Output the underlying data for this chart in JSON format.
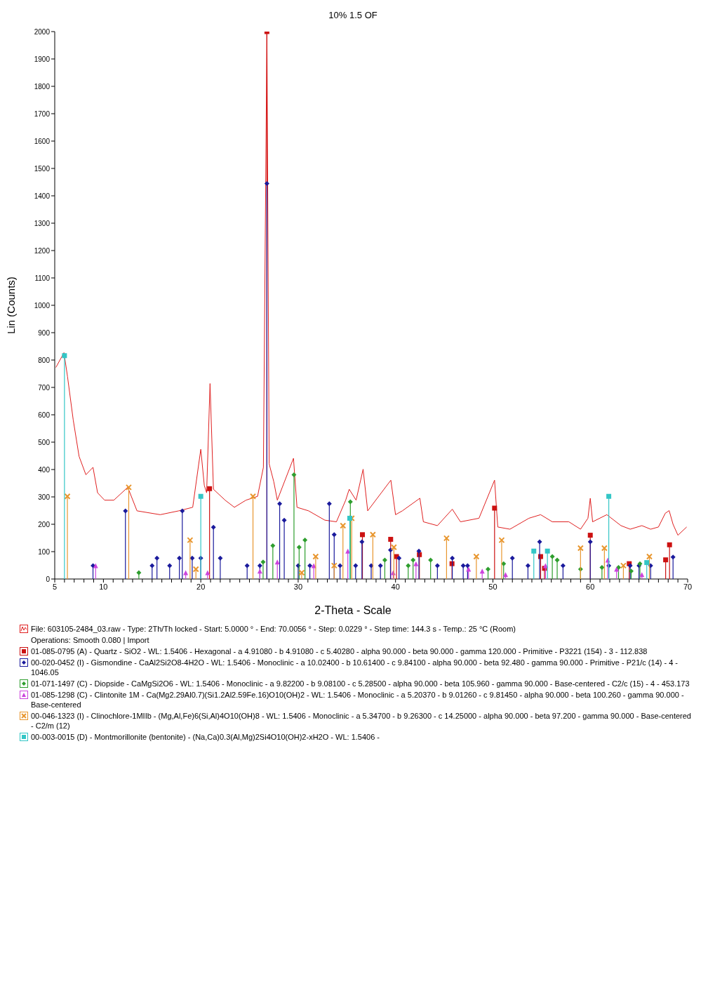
{
  "chart_data": {
    "type": "line",
    "title": "10% 1.5 OF",
    "xlabel": "2-Theta - Scale",
    "ylabel": "Lin (Counts)",
    "xlim": [
      5,
      70
    ],
    "xticks": [
      5,
      {
        "value": 6,
        "label": null
      },
      {
        "value": 7,
        "label": null
      },
      {
        "value": 8,
        "label": null
      },
      {
        "value": 9,
        "label": null
      },
      10,
      {
        "value": 11,
        "label": null
      },
      {
        "value": 12,
        "label": null
      },
      {
        "value": 13,
        "label": null
      },
      {
        "value": 14,
        "label": null
      },
      {
        "value": 15,
        "label": null
      },
      {
        "value": 16,
        "label": null
      },
      {
        "value": 17,
        "label": null
      },
      {
        "value": 18,
        "label": null
      },
      {
        "value": 19,
        "label": null
      },
      20,
      {
        "value": 21,
        "label": null
      },
      {
        "value": 22,
        "label": null
      },
      {
        "value": 23,
        "label": null
      },
      {
        "value": 24,
        "label": null
      },
      {
        "value": 25,
        "label": null
      },
      {
        "value": 26,
        "label": null
      },
      {
        "value": 27,
        "label": null
      },
      {
        "value": 28,
        "label": null
      },
      {
        "value": 29,
        "label": null
      },
      30,
      {
        "value": 31,
        "label": null
      },
      {
        "value": 32,
        "label": null
      },
      {
        "value": 33,
        "label": null
      },
      {
        "value": 34,
        "label": null
      },
      {
        "value": 35,
        "label": null
      },
      {
        "value": 36,
        "label": null
      },
      {
        "value": 37,
        "label": null
      },
      {
        "value": 38,
        "label": null
      },
      {
        "value": 39,
        "label": null
      },
      40,
      {
        "value": 41,
        "label": null
      },
      {
        "value": 42,
        "label": null
      },
      {
        "value": 43,
        "label": null
      },
      {
        "value": 44,
        "label": null
      },
      {
        "value": 45,
        "label": null
      },
      {
        "value": 46,
        "label": null
      },
      {
        "value": 47,
        "label": null
      },
      {
        "value": 48,
        "label": null
      },
      {
        "value": 49,
        "label": null
      },
      50,
      {
        "value": 51,
        "label": null
      },
      {
        "value": 52,
        "label": null
      },
      {
        "value": 53,
        "label": null
      },
      {
        "value": 54,
        "label": null
      },
      {
        "value": 55,
        "label": null
      },
      {
        "value": 56,
        "label": null
      },
      {
        "value": 57,
        "label": null
      },
      {
        "value": 58,
        "label": null
      },
      {
        "value": 59,
        "label": null
      },
      60,
      {
        "value": 61,
        "label": null
      },
      {
        "value": 62,
        "label": null
      },
      {
        "value": 63,
        "label": null
      },
      {
        "value": 64,
        "label": null
      },
      {
        "value": 65,
        "label": null
      },
      {
        "value": 66,
        "label": null
      },
      {
        "value": 67,
        "label": null
      },
      {
        "value": 68,
        "label": null
      },
      {
        "value": 69,
        "label": null
      },
      70
    ],
    "ylim": [
      0,
      2000
    ],
    "yticks": [
      0,
      100,
      200,
      300,
      400,
      500,
      600,
      700,
      800,
      900,
      1000,
      1100,
      1200,
      1300,
      1400,
      1500,
      1600,
      1700,
      1800,
      1900,
      2000
    ],
    "legend": "bottom",
    "annotations": [
      "Operations: Smooth 0.080 | Import"
    ],
    "series": [
      {
        "name": "File: 603105-2484_03.raw - Type: 2Th/Th locked - Start: 5.0000 ° - End: 70.0056 ° - Step: 0.0229 ° - Step time: 144.3 s - Temp.: 25 °C (Room)",
        "type": "line",
        "color": "#e02020",
        "x": [
          5.12,
          5.95,
          6.31,
          6.9,
          7.5,
          8.2,
          8.93,
          9.4,
          10.12,
          11.07,
          12.5,
          13.45,
          15.83,
          17.74,
          19.17,
          20.0,
          20.36,
          20.6,
          20.95,
          21.3,
          22.5,
          23.45,
          24.64,
          25.83,
          26.43,
          26.79,
          27.02,
          27.5,
          27.86,
          29.52,
          29.88,
          31.07,
          32.74,
          33.93,
          34.88,
          35.24,
          35.95,
          36.67,
          37.14,
          39.52,
          40.0,
          40.7,
          42.5,
          42.86,
          44.3,
          45.83,
          46.67,
          48.57,
          50.17,
          50.5,
          51.75,
          53.7,
          54.9,
          56.1,
          57.8,
          59.0,
          59.76,
          60.0,
          60.24,
          61.7,
          63.15,
          64.1,
          65.3,
          66.2,
          67.0,
          67.7,
          68.1,
          68.5,
          69.0,
          69.9
        ],
        "values": [
          773,
          827,
          740,
          581,
          448,
          381,
          408,
          315,
          288,
          288,
          335,
          249,
          235,
          249,
          262,
          474,
          342,
          315,
          714,
          328,
          288,
          262,
          288,
          302,
          408,
          2000,
          421,
          355,
          288,
          441,
          262,
          249,
          215,
          209,
          288,
          328,
          288,
          401,
          249,
          361,
          235,
          249,
          295,
          209,
          195,
          255,
          209,
          222,
          361,
          190,
          182,
          222,
          235,
          209,
          209,
          182,
          222,
          295,
          209,
          235,
          195,
          182,
          195,
          182,
          190,
          240,
          250,
          200,
          160,
          190
        ]
      },
      {
        "name": "01-085-0795 (A) - Quartz - SiO2 - WL: 1.5406 - Hexagonal - a 4.91080 - b 4.91080 - c 5.40280 - alpha 90.000 - beta 90.000 - gamma 120.000 - Primitive - P3221 (154) - 3 - 112.838",
        "type": "lollipop",
        "marker": "square",
        "color": "#cc1111",
        "x": [
          20.9,
          26.79,
          36.6,
          39.5,
          40.1,
          42.45,
          45.8,
          50.17,
          54.9,
          55.3,
          60.0,
          64.0,
          67.74,
          68.14
        ],
        "values": [
          330,
          2000,
          162,
          145,
          82,
          89,
          56,
          259,
          82,
          39,
          160,
          56,
          70,
          125
        ]
      },
      {
        "name": "00-020-0452 (I) - Gismondine - CaAl2Si2O8-4H2O - WL: 1.5406 - Monoclinic - a 10.02400 - b 10.61400 - c 9.84100 - alpha 90.000 - beta 92.480 - gamma 90.000 - Primitive - P21/c (14) - 4 - 1046.05",
        "type": "lollipop",
        "marker": "diamond",
        "color": "#1a1a9c",
        "x": [
          8.93,
          12.26,
          15.0,
          15.5,
          16.8,
          17.8,
          18.1,
          19.12,
          20.0,
          21.3,
          22.0,
          24.76,
          26.07,
          26.79,
          28.1,
          28.57,
          30.0,
          31.2,
          33.2,
          33.7,
          34.3,
          35.9,
          36.55,
          37.5,
          38.45,
          39.48,
          40.36,
          42.4,
          44.3,
          45.83,
          46.95,
          47.4,
          52.0,
          53.6,
          54.8,
          57.2,
          60.0,
          61.9,
          64.1,
          65.0,
          66.2,
          68.5
        ],
        "values": [
          49,
          249,
          49,
          76,
          49,
          76,
          249,
          76,
          76,
          189,
          76,
          49,
          49,
          1445,
          275,
          215,
          49,
          49,
          275,
          162,
          49,
          49,
          136,
          49,
          49,
          106,
          76,
          102,
          49,
          76,
          49,
          49,
          76,
          49,
          136,
          49,
          136,
          49,
          49,
          49,
          49,
          80
        ]
      },
      {
        "name": "01-071-1497 (C) - Diopside - CaMgSi2O6 - WL: 1.5406 - Monoclinic - a 9.82200 - b 9.08100 - c 5.28500 - alpha 90.000 - beta 105.960 - gamma 90.000 - Base-centered - C2/c (15) - 4 - 453.173",
        "type": "lollipop",
        "marker": "diamond",
        "color": "#2e9e2e",
        "x": [
          13.64,
          26.4,
          27.4,
          29.57,
          30.1,
          30.7,
          35.36,
          38.9,
          41.3,
          41.8,
          43.6,
          49.5,
          51.1,
          56.1,
          56.6,
          59.0,
          61.2,
          62.9,
          64.2,
          65.1
        ],
        "values": [
          23,
          62,
          122,
          381,
          116,
          142,
          282,
          69,
          49,
          69,
          69,
          36,
          56,
          82,
          69,
          36,
          42,
          42,
          29,
          56
        ]
      },
      {
        "name": "01-085-1298 (C) - Clintonite 1M - Ca(Mg2.29Al0.7)(Si1.2Al2.59Fe.16)O10(OH)2 - WL: 1.5406 - Monoclinic - a 5.20370 - b 9.01260 - c 9.81450 - alpha 90.000 - beta 100.260 - gamma 90.000 - Base-centered",
        "type": "lollipop",
        "marker": "triangle",
        "color": "#cc44dd",
        "x": [
          9.2,
          18.45,
          20.7,
          26.07,
          27.86,
          31.6,
          35.1,
          39.76,
          42.1,
          47.5,
          48.9,
          51.3,
          55.4,
          61.8,
          62.7,
          65.3
        ],
        "values": [
          49,
          23,
          23,
          29,
          62,
          49,
          102,
          23,
          56,
          36,
          29,
          16,
          49,
          69,
          36,
          16
        ]
      },
      {
        "name": "00-046-1323 (I) - Clinochlore-1MIIb - (Mg,Al,Fe)6(Si,Al)4O10(OH)8 - WL: 1.5406 - Monoclinic - a 5.34700 - b 9.26300 - c 14.25000 - alpha 90.000 - beta 97.200 - gamma 90.000 - Base-centered - C2/m (12)",
        "type": "lollipop",
        "marker": "cross",
        "color": "#e8962e",
        "x": [
          6.3,
          12.6,
          18.9,
          19.5,
          25.36,
          30.36,
          31.8,
          33.7,
          34.6,
          35.5,
          37.67,
          39.83,
          45.24,
          48.3,
          50.9,
          59.0,
          61.45,
          63.4,
          66.07
        ],
        "values": [
          302,
          335,
          142,
          36,
          302,
          23,
          82,
          49,
          195,
          222,
          162,
          116,
          149,
          82,
          142,
          113,
          113,
          49,
          82
        ]
      },
      {
        "name": "00-003-0015 (D) - Montmorillonite (bentonite) - (Na,Ca)0.3(Al,Mg)2Si4O10(OH)2-xH2O - WL: 1.5406 -",
        "type": "lollipop",
        "marker": "square",
        "color": "#33c6c6",
        "x": [
          6.0,
          20.0,
          35.3,
          54.2,
          55.6,
          61.9,
          65.8
        ],
        "values": [
          816,
          302,
          222,
          102,
          102,
          302,
          60
        ]
      }
    ]
  }
}
